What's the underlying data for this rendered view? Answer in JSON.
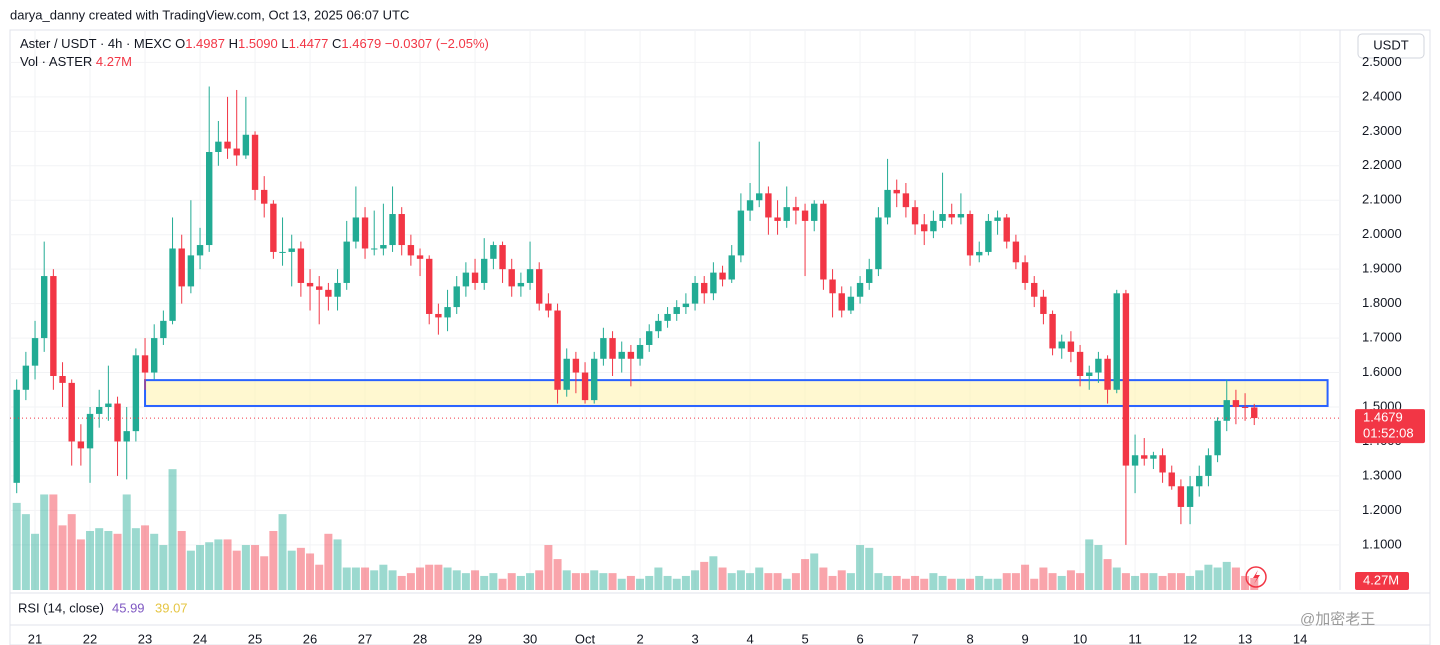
{
  "header": "darya_danny created with TradingView.com, Oct 13, 2025 06:07 UTC",
  "chart_data": {
    "type": "candlestick",
    "legend": {
      "symbol": "Aster / USDT · 4h · MEXC",
      "ohlc": [
        {
          "label": "O",
          "value": "1.4987"
        },
        {
          "label": "H",
          "value": "1.5090"
        },
        {
          "label": "L",
          "value": "1.4477"
        },
        {
          "label": "C",
          "value": "1.4679"
        }
      ],
      "change": "−0.0307 (−2.05%)",
      "volume_name": "Vol · ASTER"
    },
    "volume_label": "4.27M",
    "currency": "USDT",
    "rsi": {
      "name": "RSI (14, close)",
      "value": "45.99",
      "smoothed": "39.07"
    },
    "up_color": "#22ab94",
    "down_color": "#f23645",
    "candles": [
      [
        1.28,
        1.58,
        1.25,
        1.55
      ],
      [
        1.55,
        1.66,
        1.52,
        1.62
      ],
      [
        1.62,
        1.75,
        1.58,
        1.7
      ],
      [
        1.7,
        1.98,
        1.66,
        1.88
      ],
      [
        1.88,
        1.9,
        1.55,
        1.59
      ],
      [
        1.59,
        1.63,
        1.5,
        1.57
      ],
      [
        1.57,
        1.58,
        1.33,
        1.4
      ],
      [
        1.4,
        1.45,
        1.33,
        1.38
      ],
      [
        1.38,
        1.5,
        1.28,
        1.48
      ],
      [
        1.48,
        1.55,
        1.44,
        1.5
      ],
      [
        1.5,
        1.62,
        1.46,
        1.51
      ],
      [
        1.51,
        1.53,
        1.3,
        1.4
      ],
      [
        1.4,
        1.5,
        1.29,
        1.43
      ],
      [
        1.43,
        1.67,
        1.4,
        1.65
      ],
      [
        1.65,
        1.7,
        1.55,
        1.6
      ],
      [
        1.6,
        1.74,
        1.58,
        1.7
      ],
      [
        1.7,
        1.78,
        1.68,
        1.75
      ],
      [
        1.75,
        2.05,
        1.74,
        1.96
      ],
      [
        1.96,
        2.0,
        1.8,
        1.85
      ],
      [
        1.85,
        2.1,
        1.83,
        1.94
      ],
      [
        1.94,
        2.02,
        1.9,
        1.97
      ],
      [
        1.97,
        2.43,
        1.95,
        2.24
      ],
      [
        2.24,
        2.33,
        2.2,
        2.27
      ],
      [
        2.27,
        2.4,
        2.22,
        2.25
      ],
      [
        2.25,
        2.42,
        2.2,
        2.23
      ],
      [
        2.23,
        2.4,
        2.22,
        2.29
      ],
      [
        2.29,
        2.3,
        2.1,
        2.13
      ],
      [
        2.13,
        2.17,
        2.05,
        2.09
      ],
      [
        2.09,
        2.1,
        1.93,
        1.95
      ],
      [
        1.95,
        2.05,
        1.91,
        1.95
      ],
      [
        1.95,
        2.0,
        1.85,
        1.96
      ],
      [
        1.96,
        1.98,
        1.82,
        1.86
      ],
      [
        1.86,
        1.9,
        1.78,
        1.85
      ],
      [
        1.85,
        1.88,
        1.74,
        1.84
      ],
      [
        1.84,
        1.86,
        1.78,
        1.82
      ],
      [
        1.82,
        1.9,
        1.78,
        1.86
      ],
      [
        1.86,
        2.04,
        1.84,
        1.98
      ],
      [
        1.98,
        2.14,
        1.96,
        2.05
      ],
      [
        2.05,
        2.08,
        1.93,
        1.96
      ],
      [
        1.96,
        2.07,
        1.94,
        1.96
      ],
      [
        1.96,
        2.09,
        1.94,
        1.97
      ],
      [
        1.97,
        2.14,
        1.95,
        2.06
      ],
      [
        2.06,
        2.08,
        1.94,
        1.97
      ],
      [
        1.97,
        2.0,
        1.91,
        1.94
      ],
      [
        1.94,
        1.96,
        1.88,
        1.93
      ],
      [
        1.93,
        1.94,
        1.74,
        1.77
      ],
      [
        1.77,
        1.8,
        1.71,
        1.76
      ],
      [
        1.76,
        1.84,
        1.72,
        1.79
      ],
      [
        1.79,
        1.88,
        1.77,
        1.85
      ],
      [
        1.85,
        1.92,
        1.82,
        1.89
      ],
      [
        1.89,
        1.93,
        1.84,
        1.86
      ],
      [
        1.86,
        1.99,
        1.84,
        1.93
      ],
      [
        1.93,
        1.98,
        1.9,
        1.97
      ],
      [
        1.97,
        1.98,
        1.86,
        1.9
      ],
      [
        1.9,
        1.93,
        1.82,
        1.85
      ],
      [
        1.85,
        1.89,
        1.82,
        1.86
      ],
      [
        1.86,
        1.98,
        1.84,
        1.9
      ],
      [
        1.9,
        1.92,
        1.78,
        1.8
      ],
      [
        1.8,
        1.83,
        1.76,
        1.78
      ],
      [
        1.78,
        1.8,
        1.51,
        1.55
      ],
      [
        1.55,
        1.67,
        1.53,
        1.64
      ],
      [
        1.64,
        1.66,
        1.54,
        1.6
      ],
      [
        1.6,
        1.63,
        1.51,
        1.52
      ],
      [
        1.52,
        1.66,
        1.51,
        1.64
      ],
      [
        1.64,
        1.73,
        1.62,
        1.7
      ],
      [
        1.7,
        1.72,
        1.59,
        1.64
      ],
      [
        1.64,
        1.69,
        1.6,
        1.66
      ],
      [
        1.66,
        1.68,
        1.56,
        1.64
      ],
      [
        1.64,
        1.7,
        1.62,
        1.68
      ],
      [
        1.68,
        1.74,
        1.66,
        1.72
      ],
      [
        1.72,
        1.77,
        1.7,
        1.75
      ],
      [
        1.75,
        1.79,
        1.73,
        1.77
      ],
      [
        1.77,
        1.81,
        1.75,
        1.79
      ],
      [
        1.79,
        1.83,
        1.77,
        1.8
      ],
      [
        1.8,
        1.88,
        1.78,
        1.86
      ],
      [
        1.86,
        1.88,
        1.8,
        1.83
      ],
      [
        1.83,
        1.92,
        1.81,
        1.89
      ],
      [
        1.89,
        1.91,
        1.85,
        1.87
      ],
      [
        1.87,
        1.97,
        1.86,
        1.94
      ],
      [
        1.94,
        2.12,
        1.92,
        2.07
      ],
      [
        2.07,
        2.15,
        2.04,
        2.1
      ],
      [
        2.1,
        2.27,
        2.08,
        2.12
      ],
      [
        2.12,
        2.14,
        2.0,
        2.05
      ],
      [
        2.05,
        2.1,
        2.0,
        2.04
      ],
      [
        2.04,
        2.14,
        2.02,
        2.08
      ],
      [
        2.08,
        2.11,
        2.03,
        2.07
      ],
      [
        2.07,
        2.09,
        1.88,
        2.04
      ],
      [
        2.04,
        2.1,
        2.01,
        2.09
      ],
      [
        2.09,
        2.1,
        1.84,
        1.87
      ],
      [
        1.87,
        1.9,
        1.76,
        1.83
      ],
      [
        1.83,
        1.85,
        1.76,
        1.78
      ],
      [
        1.78,
        1.85,
        1.77,
        1.82
      ],
      [
        1.82,
        1.88,
        1.8,
        1.86
      ],
      [
        1.86,
        1.93,
        1.84,
        1.9
      ],
      [
        1.9,
        2.08,
        1.88,
        2.05
      ],
      [
        2.05,
        2.22,
        2.03,
        2.13
      ],
      [
        2.13,
        2.16,
        2.08,
        2.12
      ],
      [
        2.12,
        2.15,
        2.05,
        2.08
      ],
      [
        2.08,
        2.1,
        2.0,
        2.03
      ],
      [
        2.03,
        2.06,
        1.97,
        2.01
      ],
      [
        2.01,
        2.07,
        1.99,
        2.04
      ],
      [
        2.04,
        2.18,
        2.02,
        2.06
      ],
      [
        2.06,
        2.09,
        2.03,
        2.05
      ],
      [
        2.05,
        2.12,
        2.03,
        2.06
      ],
      [
        2.06,
        2.07,
        1.91,
        1.94
      ],
      [
        1.94,
        1.98,
        1.92,
        1.95
      ],
      [
        1.95,
        2.06,
        1.94,
        2.04
      ],
      [
        2.04,
        2.07,
        2.0,
        2.05
      ],
      [
        2.05,
        2.06,
        1.96,
        1.98
      ],
      [
        1.98,
        2.0,
        1.9,
        1.92
      ],
      [
        1.92,
        1.94,
        1.84,
        1.86
      ],
      [
        1.86,
        1.88,
        1.79,
        1.82
      ],
      [
        1.82,
        1.84,
        1.74,
        1.77
      ],
      [
        1.77,
        1.78,
        1.65,
        1.67
      ],
      [
        1.67,
        1.71,
        1.64,
        1.69
      ],
      [
        1.69,
        1.72,
        1.63,
        1.66
      ],
      [
        1.66,
        1.68,
        1.56,
        1.59
      ],
      [
        1.59,
        1.62,
        1.55,
        1.6
      ],
      [
        1.6,
        1.66,
        1.57,
        1.64
      ],
      [
        1.64,
        1.65,
        1.51,
        1.55
      ],
      [
        1.55,
        1.84,
        1.54,
        1.83
      ],
      [
        1.83,
        1.84,
        1.1,
        1.33
      ],
      [
        1.33,
        1.42,
        1.25,
        1.36
      ],
      [
        1.36,
        1.41,
        1.33,
        1.35
      ],
      [
        1.35,
        1.37,
        1.32,
        1.36
      ],
      [
        1.36,
        1.38,
        1.28,
        1.31
      ],
      [
        1.31,
        1.33,
        1.26,
        1.27
      ],
      [
        1.27,
        1.29,
        1.16,
        1.21
      ],
      [
        1.21,
        1.3,
        1.16,
        1.27
      ],
      [
        1.27,
        1.33,
        1.24,
        1.3
      ],
      [
        1.3,
        1.38,
        1.27,
        1.36
      ],
      [
        1.36,
        1.47,
        1.34,
        1.46
      ],
      [
        1.46,
        1.58,
        1.43,
        1.52
      ],
      [
        1.52,
        1.55,
        1.45,
        1.5
      ],
      [
        1.5,
        1.54,
        1.46,
        1.4987
      ],
      [
        1.4987,
        1.509,
        1.4477,
        1.4679
      ]
    ],
    "volume": [
      31,
      27,
      20,
      34,
      34,
      23,
      27,
      18,
      21,
      22,
      21,
      20,
      34,
      22,
      23,
      20,
      16,
      43,
      21,
      14,
      16,
      17,
      18,
      18,
      14,
      16,
      16,
      12,
      21,
      27,
      14,
      15,
      13,
      9,
      20,
      18,
      8,
      8,
      8,
      7,
      9,
      7,
      5,
      6,
      8,
      9,
      9,
      8,
      7,
      6,
      7,
      5,
      6,
      4,
      6,
      5,
      6,
      7,
      16,
      11,
      7,
      6,
      6,
      7,
      6,
      6,
      4,
      5,
      4,
      5,
      8,
      5,
      4,
      5,
      7,
      10,
      12,
      8,
      6,
      7,
      6,
      8,
      6,
      6,
      4,
      6,
      11,
      13,
      8,
      5,
      7,
      6,
      16,
      15,
      6,
      5,
      5,
      4,
      5,
      4,
      6,
      5,
      4,
      4,
      4,
      5,
      4,
      4,
      6,
      6,
      9,
      4,
      8,
      6,
      5,
      7,
      6,
      18,
      16,
      11,
      8,
      6,
      5,
      6,
      6,
      5,
      6,
      6,
      5,
      7,
      9,
      8,
      10,
      8,
      5,
      4.27
    ],
    "ylim": [
      0.969,
      2.594
    ],
    "yticks": [
      {
        "value": 1.1,
        "label": "1.1000"
      },
      {
        "value": 1.2,
        "label": "1.2000"
      },
      {
        "value": 1.3,
        "label": "1.3000"
      },
      {
        "value": 1.4,
        "label": "1.4000"
      },
      {
        "value": 1.5,
        "label": "1.5000"
      },
      {
        "value": 1.6,
        "label": "1.6000"
      },
      {
        "value": 1.7,
        "label": "1.7000"
      },
      {
        "value": 1.8,
        "label": "1.8000"
      },
      {
        "value": 1.9,
        "label": "1.9000"
      },
      {
        "value": 2.0,
        "label": "2.0000"
      },
      {
        "value": 2.1,
        "label": "2.1000"
      },
      {
        "value": 2.2,
        "label": "2.2000"
      },
      {
        "value": 2.3,
        "label": "2.3000"
      },
      {
        "value": 2.4,
        "label": "2.4000"
      },
      {
        "value": 2.5,
        "label": "2.5000"
      }
    ],
    "xticks": [
      {
        "value": 2,
        "label": "21"
      },
      {
        "value": 8,
        "label": "22"
      },
      {
        "value": 14,
        "label": "23"
      },
      {
        "value": 20,
        "label": "24"
      },
      {
        "value": 26,
        "label": "25"
      },
      {
        "value": 32,
        "label": "26"
      },
      {
        "value": 38,
        "label": "27"
      },
      {
        "value": 44,
        "label": "28"
      },
      {
        "value": 50,
        "label": "29"
      },
      {
        "value": 56,
        "label": "30"
      },
      {
        "value": 62,
        "label": "Oct"
      },
      {
        "value": 68,
        "label": "2"
      },
      {
        "value": 74,
        "label": "3"
      },
      {
        "value": 80,
        "label": "4"
      },
      {
        "value": 86,
        "label": "5"
      },
      {
        "value": 92,
        "label": "6"
      },
      {
        "value": 98,
        "label": "7"
      },
      {
        "value": 104,
        "label": "8"
      },
      {
        "value": 110,
        "label": "9"
      },
      {
        "value": 116,
        "label": "10"
      },
      {
        "value": 122,
        "label": "11"
      },
      {
        "value": 128,
        "label": "12"
      },
      {
        "value": 134,
        "label": "13"
      },
      {
        "value": 140,
        "label": "14"
      }
    ],
    "zone": {
      "ylim": [
        1.503,
        1.578
      ],
      "x": [
        14,
        143
      ]
    },
    "price_tag": {
      "value": 1.4679,
      "label": "1.4679",
      "countdown": "01:52:08"
    },
    "grid": true
  },
  "watermark": "@加密老王"
}
